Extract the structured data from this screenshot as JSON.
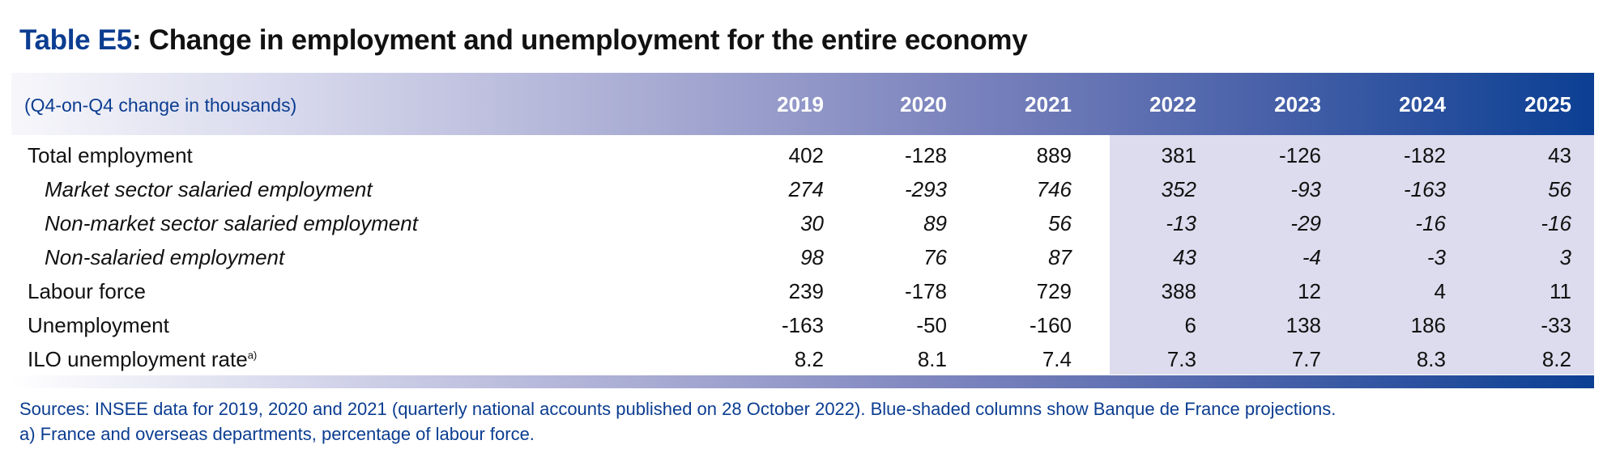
{
  "title": {
    "number": "Table E5",
    "text": ": Change in employment and unemployment for the entire economy"
  },
  "unit": "(Q4-on-Q4 change in thousands)",
  "years": [
    "2019",
    "2020",
    "2021",
    "2022",
    "2023",
    "2024",
    "2025"
  ],
  "projection_years": [
    "2022",
    "2023",
    "2024",
    "2025"
  ],
  "colors": {
    "brand_blue": "#0b3f93",
    "projection_shade": "#dcdcee"
  },
  "rows": [
    {
      "label": "Total employment",
      "sup": "",
      "sub": false,
      "values": [
        "402",
        "-128",
        "889",
        "381",
        "-126",
        "-182",
        "43"
      ]
    },
    {
      "label": "Market sector salaried employment",
      "sup": "",
      "sub": true,
      "values": [
        "274",
        "-293",
        "746",
        "352",
        "-93",
        "-163",
        "56"
      ]
    },
    {
      "label": "Non-market sector salaried employment",
      "sup": "",
      "sub": true,
      "values": [
        "30",
        "89",
        "56",
        "-13",
        "-29",
        "-16",
        "-16"
      ]
    },
    {
      "label": "Non-salaried employment",
      "sup": "",
      "sub": true,
      "values": [
        "98",
        "76",
        "87",
        "43",
        "-4",
        "-3",
        "3"
      ]
    },
    {
      "label": "Labour force",
      "sup": "",
      "sub": false,
      "values": [
        "239",
        "-178",
        "729",
        "388",
        "12",
        "4",
        "11"
      ]
    },
    {
      "label": "Unemployment",
      "sup": "",
      "sub": false,
      "values": [
        "-163",
        "-50",
        "-160",
        "6",
        "138",
        "186",
        "-33"
      ]
    },
    {
      "label": "ILO unemployment rate",
      "sup": "a)",
      "sub": false,
      "values": [
        "8.2",
        "8.1",
        "7.4",
        "7.3",
        "7.7",
        "8.3",
        "8.2"
      ]
    }
  ],
  "notes": [
    "Sources: INSEE data for 2019, 2020 and 2021 (quarterly national accounts published on 28 October 2022). Blue-shaded columns show Banque de France projections.",
    "a)  France and overseas departments, percentage of labour force."
  ]
}
